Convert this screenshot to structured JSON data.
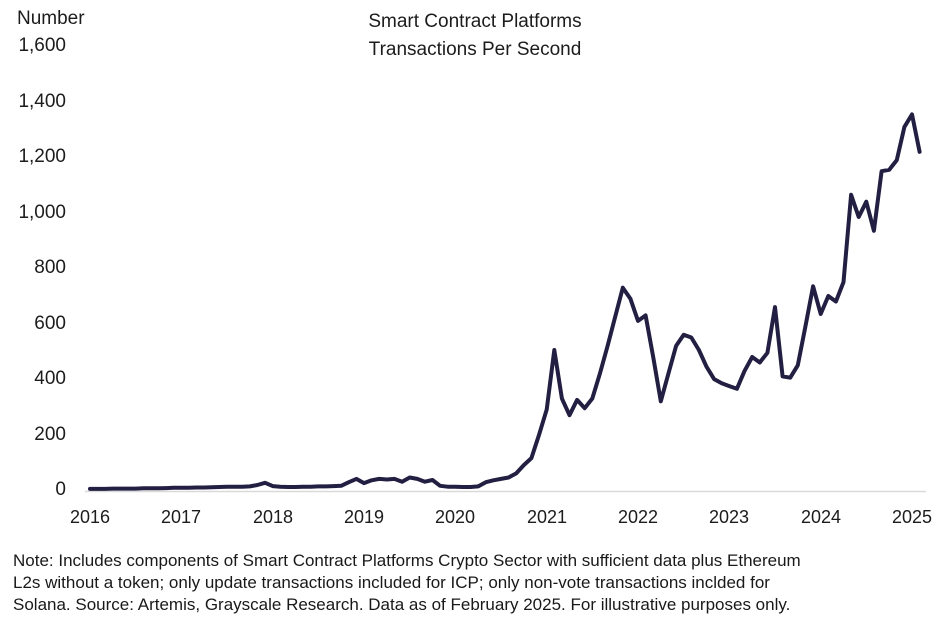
{
  "header": {
    "y_axis_title": "Number",
    "title_line1": "Smart Contract Platforms",
    "title_line2": "Transactions Per Second"
  },
  "footnote": {
    "line1": "Note: Includes components of Smart Contract Platforms Crypto Sector with sufficient data plus Ethereum",
    "line2": "L2s without a token; only update transactions included for ICP; only non-vote transactions inclded for",
    "line3": "Solana. Source: Artemis, Grayscale Research. Data as of February 2025. For illustrative purposes only."
  },
  "chart_data": {
    "type": "line",
    "title": "Smart Contract Platforms Transactions Per Second",
    "ylabel": "Number",
    "ylim": [
      0,
      1600
    ],
    "grid": false,
    "legend": "none",
    "line_color": "#221f42",
    "baseline_color": "#d9d9d9",
    "text_color": "#1c1c1c",
    "ytick_labels": [
      "0",
      "200",
      "400",
      "600",
      "800",
      "1,000",
      "1,200",
      "1,400",
      "1,600"
    ],
    "ytick_values": [
      0,
      200,
      400,
      600,
      800,
      1000,
      1200,
      1400,
      1600
    ],
    "xtick_labels": [
      "2016",
      "2017",
      "2018",
      "2019",
      "2020",
      "2021",
      "2022",
      "2023",
      "2024",
      "2025"
    ],
    "series": [
      {
        "name": "Transactions Per Second",
        "start": "2016-01",
        "interval": "monthly",
        "end": "2025-02",
        "values": [
          4,
          4,
          4,
          5,
          5,
          5,
          5,
          6,
          6,
          6,
          7,
          8,
          8,
          8,
          9,
          9,
          10,
          11,
          12,
          12,
          12,
          13,
          18,
          26,
          14,
          12,
          11,
          11,
          12,
          12,
          13,
          13,
          14,
          15,
          28,
          40,
          25,
          35,
          40,
          38,
          40,
          30,
          45,
          40,
          30,
          36,
          15,
          12,
          12,
          11,
          11,
          13,
          28,
          35,
          40,
          45,
          60,
          90,
          115,
          200,
          290,
          505,
          330,
          270,
          325,
          295,
          330,
          420,
          520,
          625,
          730,
          690,
          610,
          630,
          480,
          320,
          420,
          520,
          560,
          550,
          505,
          445,
          400,
          385,
          375,
          365,
          430,
          480,
          460,
          495,
          660,
          410,
          405,
          450,
          590,
          735,
          635,
          700,
          680,
          750,
          1065,
          985,
          1040,
          935,
          1150,
          1155,
          1190,
          1310,
          1355,
          1220
        ]
      }
    ]
  }
}
